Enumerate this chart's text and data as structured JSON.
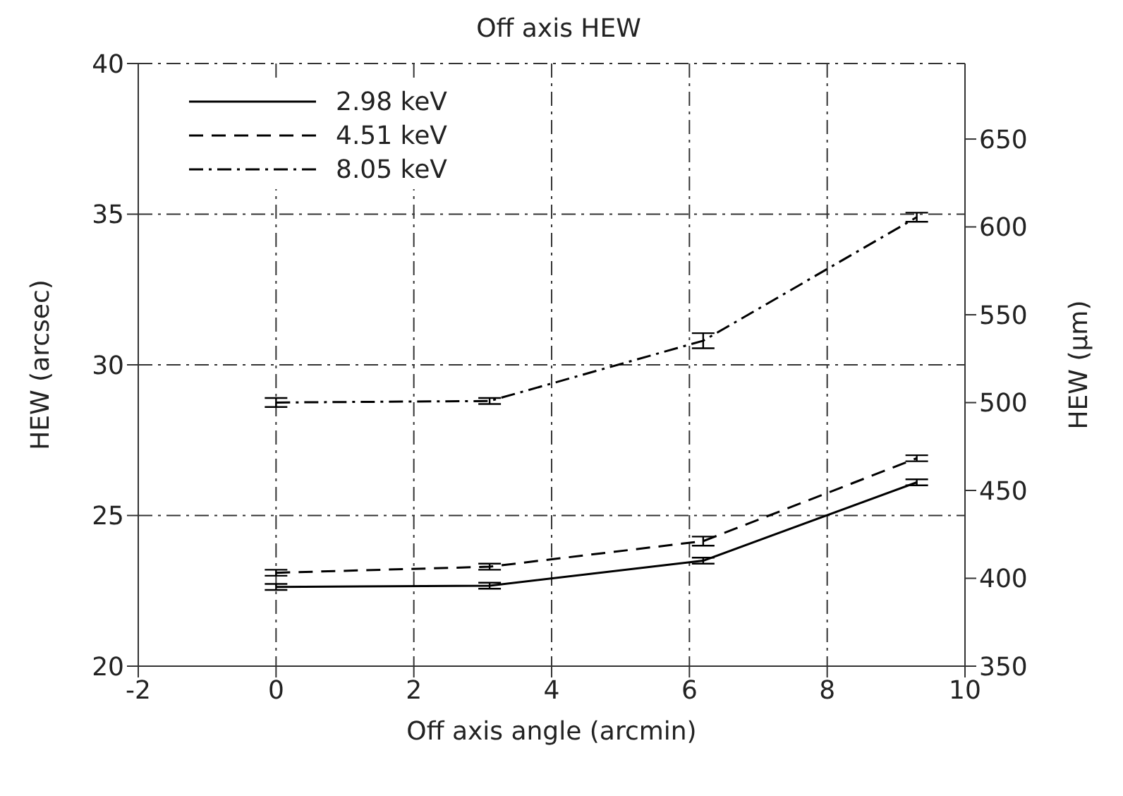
{
  "chart_data": {
    "type": "line",
    "title": "Off axis HEW",
    "xlabel": "Off axis angle (arcmin)",
    "ylabel": "HEW (arcsec)",
    "y2label": "HEW (μm)",
    "xlim": [
      -2,
      10
    ],
    "xticks": [
      -2,
      0,
      2,
      4,
      6,
      8,
      10
    ],
    "ylim": [
      20,
      40
    ],
    "yticks": [
      20,
      25,
      30,
      35,
      40
    ],
    "y2lim": [
      350,
      693
    ],
    "y2ticks": [
      350,
      400,
      450,
      500,
      550,
      600,
      650
    ],
    "grid": true,
    "legend": "top left",
    "marker": "none",
    "series": [
      {
        "name": "2.98 keV",
        "color": "#000000",
        "line_style": "solid",
        "x": [
          0,
          3.1,
          6.2,
          9.3
        ],
        "values": [
          22.63,
          22.67,
          23.5,
          26.1
        ],
        "errors": [
          0.1,
          0.1,
          0.1,
          0.1
        ]
      },
      {
        "name": "4.51 keV",
        "color": "#000000",
        "line_style": "dashed",
        "x": [
          0,
          3.1,
          6.2,
          9.3
        ],
        "values": [
          23.1,
          23.3,
          24.15,
          26.9
        ],
        "errors": [
          0.1,
          0.1,
          0.15,
          0.1
        ]
      },
      {
        "name": "8.05 keV",
        "color": "#000000",
        "line_style": "dashdot",
        "x": [
          0,
          3.1,
          6.2,
          9.3
        ],
        "values": [
          28.75,
          28.8,
          30.8,
          34.9
        ],
        "errors": [
          0.15,
          0.1,
          0.25,
          0.15
        ]
      }
    ]
  }
}
